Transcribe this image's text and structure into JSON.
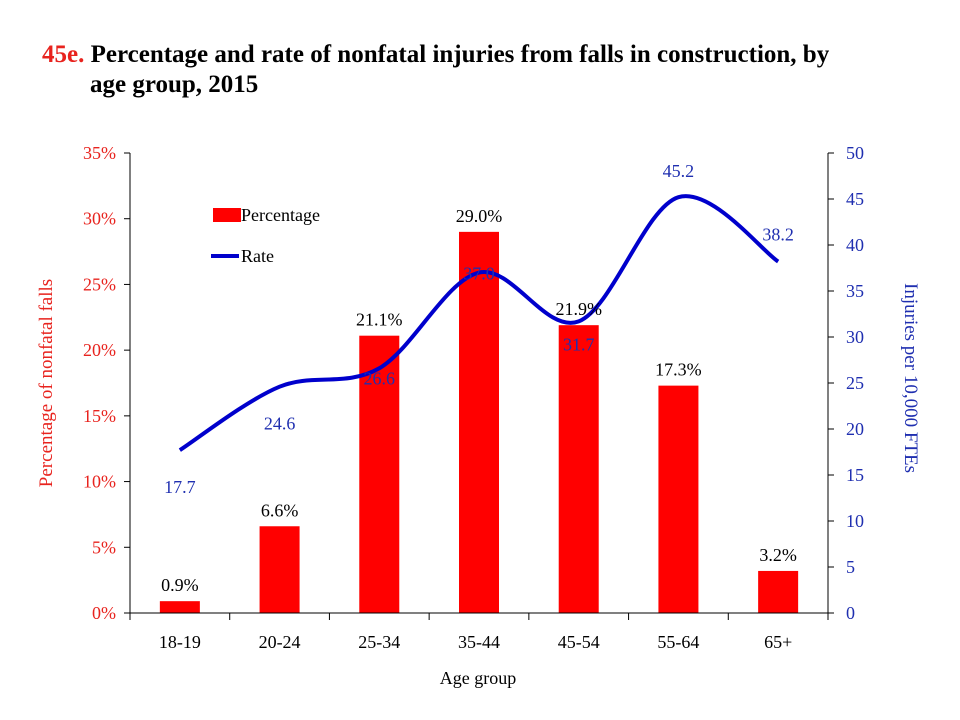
{
  "title": {
    "number": "45e.",
    "line1": "Percentage and rate of nonfatal injuries from falls in construction, by",
    "line2": "age group, 2015"
  },
  "colors": {
    "bar": "#ff0000",
    "line": "#0000cc",
    "left_axis": "#e8231e",
    "right_axis": "#1f2fb0"
  },
  "chart_data": {
    "type": "bar",
    "combo": "bar + line (dual y-axis)",
    "categories": [
      "18-19",
      "20-24",
      "25-34",
      "35-44",
      "45-54",
      "55-64",
      "65+"
    ],
    "series": [
      {
        "name": "Percentage",
        "type": "bar",
        "axis": "left",
        "values": [
          0.9,
          6.6,
          21.1,
          29.0,
          21.9,
          17.3,
          3.2
        ],
        "labels": [
          "0.9%",
          "6.6%",
          "21.1%",
          "29.0%",
          "21.9%",
          "17.3%",
          "3.2%"
        ]
      },
      {
        "name": "Rate",
        "type": "line",
        "axis": "right",
        "smooth": true,
        "values": [
          17.7,
          24.6,
          26.6,
          37.0,
          31.7,
          45.2,
          38.2
        ],
        "labels": [
          "17.7",
          "24.6",
          "26.6",
          "37.0",
          "31.7",
          "45.2",
          "38.2"
        ]
      }
    ],
    "xlabel": "Age group",
    "ylabel": "Percentage of nonfatal falls",
    "y2label": "Injuries per 10,000 FTEs",
    "ylim": [
      0,
      35
    ],
    "y2lim": [
      0,
      50
    ],
    "yticks": [
      "0%",
      "5%",
      "10%",
      "15%",
      "20%",
      "25%",
      "30%",
      "35%"
    ],
    "y2ticks": [
      "0",
      "5",
      "10",
      "15",
      "20",
      "25",
      "30",
      "35",
      "40",
      "45",
      "50"
    ],
    "legend": {
      "position": "upper-left inside plot",
      "items": [
        "Percentage",
        "Rate"
      ]
    },
    "grid": false
  }
}
